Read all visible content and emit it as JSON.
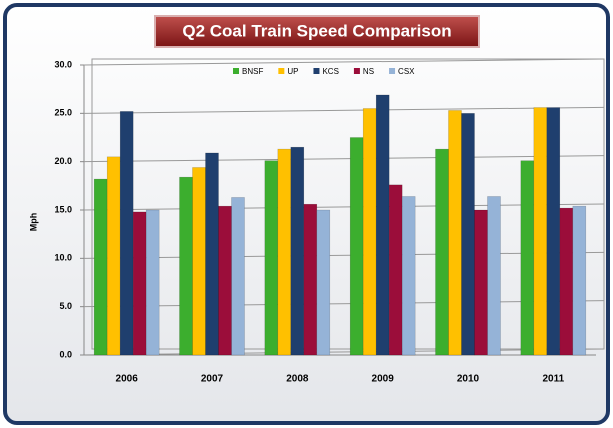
{
  "chart_data": {
    "type": "bar",
    "title": "Q2 Coal Train Speed Comparison",
    "ylabel": "Mph",
    "categories": [
      "2006",
      "2007",
      "2008",
      "2009",
      "2010",
      "2011"
    ],
    "series": [
      {
        "name": "BNSF",
        "color": "#3cae2e",
        "values": [
          18.2,
          18.4,
          20.1,
          22.5,
          21.3,
          20.1
        ]
      },
      {
        "name": "UP",
        "color": "#ffc000",
        "values": [
          20.5,
          19.4,
          21.3,
          25.5,
          25.3,
          25.6
        ]
      },
      {
        "name": "KCS",
        "color": "#1f3f6e",
        "values": [
          25.2,
          20.9,
          21.5,
          26.9,
          25.0,
          25.6
        ]
      },
      {
        "name": "NS",
        "color": "#9b0d3a",
        "values": [
          14.8,
          15.4,
          15.6,
          17.6,
          15.0,
          15.2
        ]
      },
      {
        "name": "CSX",
        "color": "#95b3d7",
        "values": [
          15.0,
          16.3,
          15.0,
          16.4,
          16.4,
          15.4
        ]
      }
    ],
    "ylim": [
      0,
      30
    ],
    "yticks": [
      {
        "value": 0,
        "label": "0.0"
      },
      {
        "value": 5,
        "label": "5.0"
      },
      {
        "value": 10,
        "label": "10.0"
      },
      {
        "value": 15,
        "label": "15.0"
      },
      {
        "value": 20,
        "label": "20.0"
      },
      {
        "value": 25,
        "label": "25.0"
      },
      {
        "value": 30,
        "label": "30.0"
      }
    ],
    "grid": true,
    "legend": "top"
  }
}
